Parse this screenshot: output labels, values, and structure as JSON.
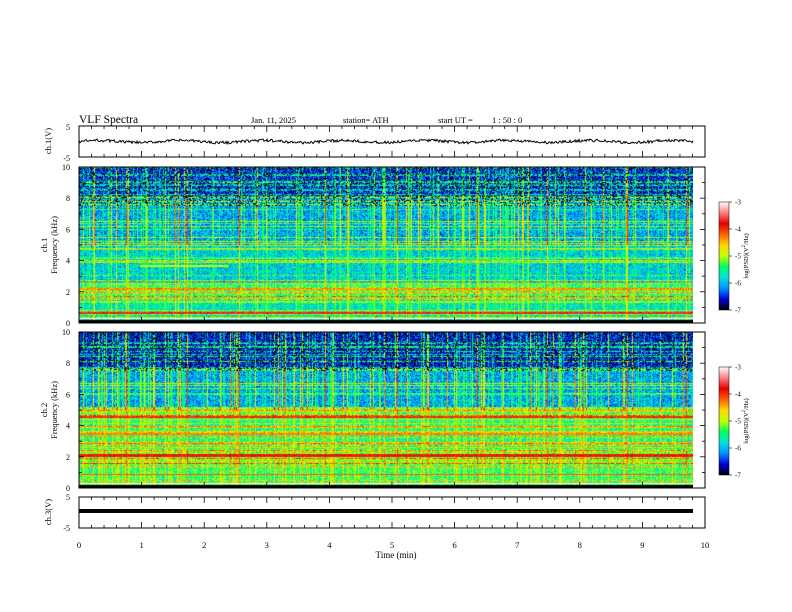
{
  "header": {
    "title": "VLF  Spectra",
    "date": "Jan. 11, 2025",
    "station": "station= ATH",
    "start_label": "start  UT  =",
    "start_time": "1 : 50 : 0"
  },
  "chart_data": [
    {
      "type": "line",
      "ylabel": "ch.1(V)",
      "ylim": [
        -5,
        5
      ],
      "yticks": [
        "5",
        "-5"
      ],
      "baseline": 0,
      "note": "noisy waveform, amplitude about ±1 V"
    },
    {
      "type": "heatmap",
      "ylabel": "ch.1\nFrequency (kHz)",
      "ylim": [
        0,
        10
      ],
      "yticks": [
        "0",
        "2",
        "4",
        "6",
        "8",
        "10"
      ],
      "xlim": [
        0,
        10
      ],
      "colorbar": {
        "label": "log(PSD)(V²/Hz)",
        "range": [
          -7,
          -3
        ],
        "ticks": [
          "-3",
          "-4",
          "-5",
          "-6",
          "-7"
        ],
        "colors": [
          "#000000",
          "#0000d8",
          "#0090ff",
          "#00e0e0",
          "#00ff60",
          "#c0ff00",
          "#ffd800",
          "#ff6000",
          "#e00000",
          "#ff8080",
          "#ffffff"
        ]
      }
    },
    {
      "type": "heatmap",
      "ylabel": "ch.2\nFrequency (kHz)",
      "ylim": [
        0,
        10
      ],
      "yticks": [
        "0",
        "2",
        "4",
        "6",
        "8",
        "10"
      ],
      "xlim": [
        0,
        10
      ],
      "colorbar": {
        "label": "log(PSD)(V²/Hz)",
        "range": [
          -7,
          -3
        ],
        "ticks": [
          "-3",
          "-4",
          "-5",
          "-6",
          "-7"
        ],
        "colors": [
          "#000000",
          "#0000d8",
          "#0090ff",
          "#00e0e0",
          "#00ff60",
          "#c0ff00",
          "#ffd800",
          "#ff6000",
          "#e00000",
          "#ff8080",
          "#ffffff"
        ]
      }
    },
    {
      "type": "line",
      "ylabel": "ch.3(V)",
      "ylim": [
        -5,
        5
      ],
      "yticks": [
        "5",
        "-5"
      ],
      "baseline": -2,
      "note": "flat thick trace near -2 V"
    }
  ],
  "xaxis": {
    "label": "Time  (min)",
    "range": [
      0,
      10
    ],
    "ticks": [
      "0",
      "1",
      "2",
      "3",
      "4",
      "5",
      "6",
      "7",
      "8",
      "9",
      "10"
    ]
  }
}
